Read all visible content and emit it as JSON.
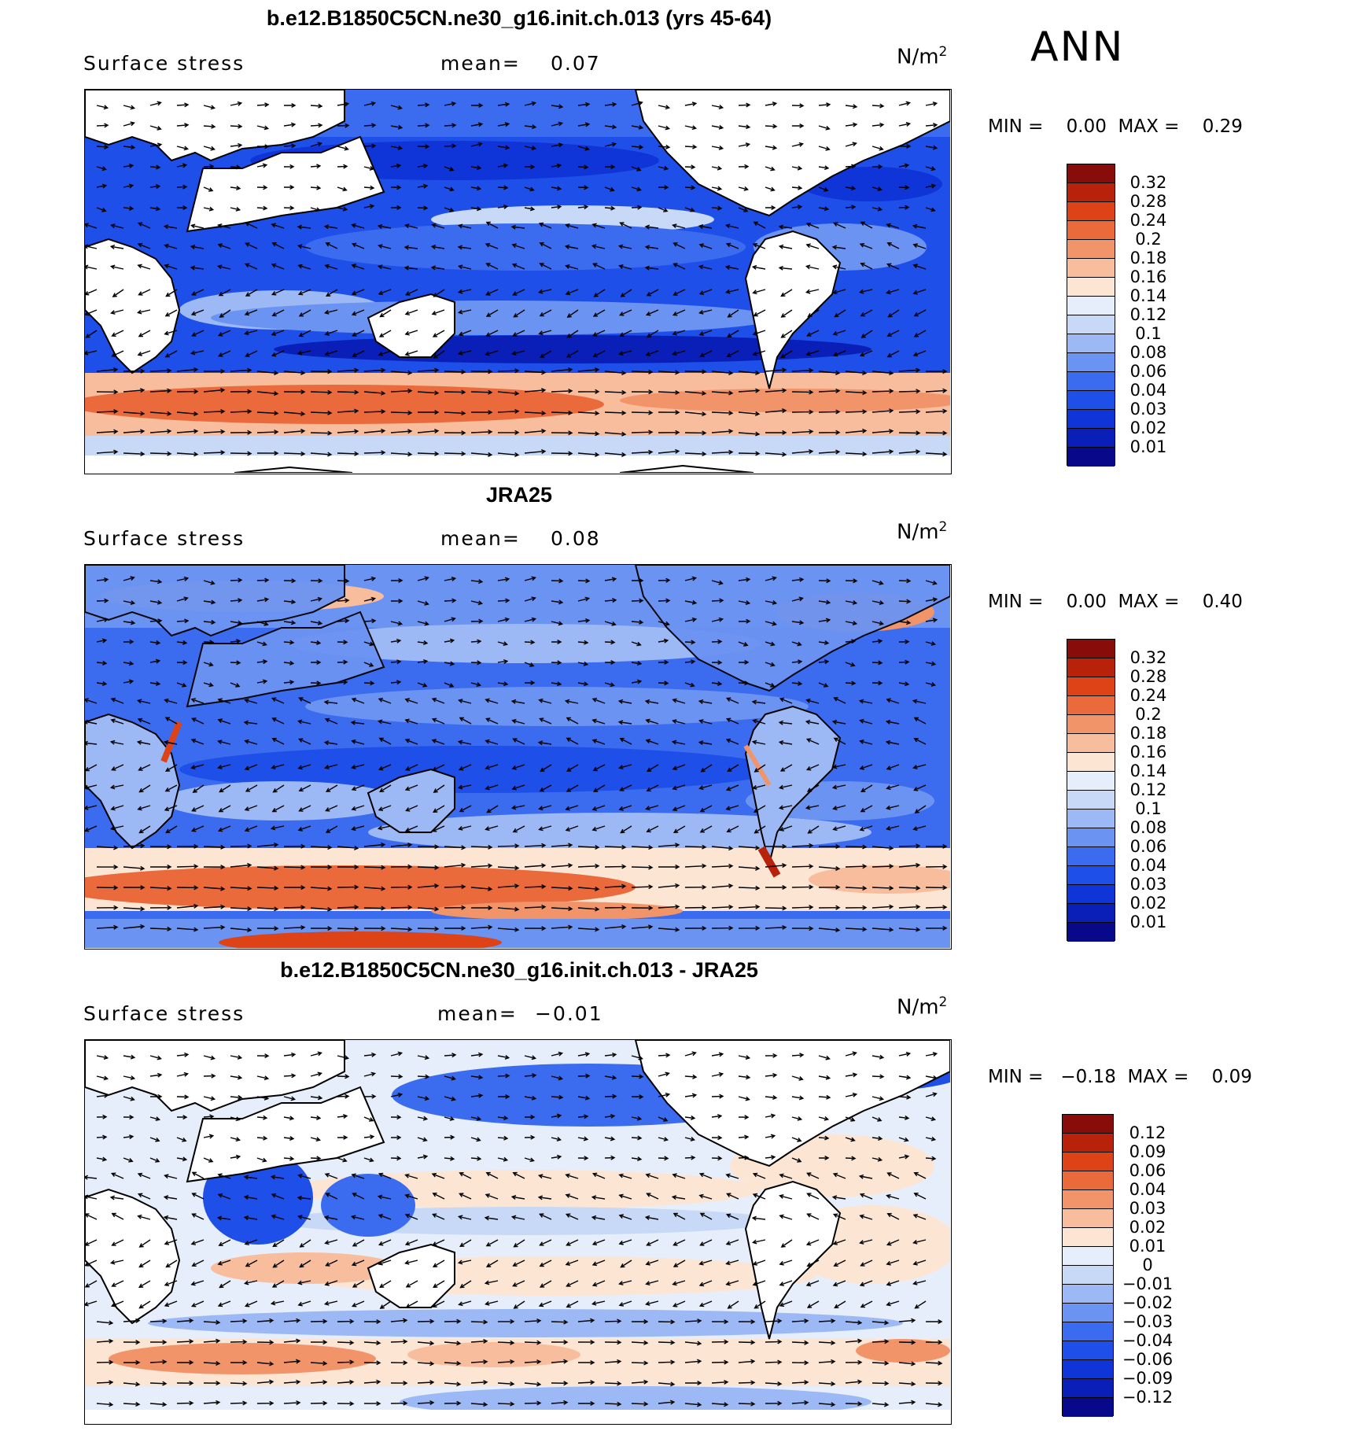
{
  "season": "ANN",
  "panels": [
    {
      "title": "b.e12.B1850C5CN.ne30_g16.init.ch.013 (yrs 45-64)",
      "variable": "Surface stress",
      "mean_label": "mean=",
      "mean_value": "0.07",
      "units": "N/m",
      "units_exp": "2",
      "min_label": "MIN =",
      "min_value": "0.00",
      "max_label": "MAX =",
      "max_value": "0.29",
      "levels": [
        "0.32",
        "0.28",
        "0.24",
        "0.2",
        "0.18",
        "0.16",
        "0.14",
        "0.12",
        "0.1",
        "0.08",
        "0.06",
        "0.04",
        "0.03",
        "0.02",
        "0.01"
      ]
    },
    {
      "title": "JRA25",
      "variable": "Surface stress",
      "mean_label": "mean=",
      "mean_value": "0.08",
      "units": "N/m",
      "units_exp": "2",
      "min_label": "MIN =",
      "min_value": "0.00",
      "max_label": "MAX =",
      "max_value": "0.40",
      "levels": [
        "0.32",
        "0.28",
        "0.24",
        "0.2",
        "0.18",
        "0.16",
        "0.14",
        "0.12",
        "0.1",
        "0.08",
        "0.06",
        "0.04",
        "0.03",
        "0.02",
        "0.01"
      ]
    },
    {
      "title": "b.e12.B1850C5CN.ne30_g16.init.ch.013 - JRA25",
      "variable": "Surface stress",
      "mean_label": "mean=",
      "mean_value": "−0.01",
      "units": "N/m",
      "units_exp": "2",
      "min_label": "MIN =",
      "min_value": "−0.18",
      "max_label": "MAX =",
      "max_value": "0.09",
      "levels": [
        "0.12",
        "0.09",
        "0.06",
        "0.04",
        "0.03",
        "0.02",
        "0.01",
        "0",
        "−0.01",
        "−0.02",
        "−0.03",
        "−0.04",
        "−0.06",
        "−0.09",
        "−0.12"
      ]
    }
  ],
  "colors": {
    "seq": [
      "#08088a",
      "#0a1fb8",
      "#0f35d8",
      "#1e4fe8",
      "#3b6cef",
      "#6b93f2",
      "#9db9f5",
      "#c7d9f7",
      "#e6eefb",
      "#fde5d3",
      "#f7bd9c",
      "#f2946a",
      "#ea6a3c",
      "#dd4316",
      "#b8220a",
      "#870c0a"
    ],
    "div": [
      "#08088a",
      "#0a1fb8",
      "#0f35d8",
      "#1e4fe8",
      "#3b6cef",
      "#6b93f2",
      "#9db9f5",
      "#c7d9f7",
      "#e6eefb",
      "#fde5d3",
      "#f7bd9c",
      "#f2946a",
      "#ea6a3c",
      "#dd4316",
      "#b8220a",
      "#870c0a"
    ]
  }
}
